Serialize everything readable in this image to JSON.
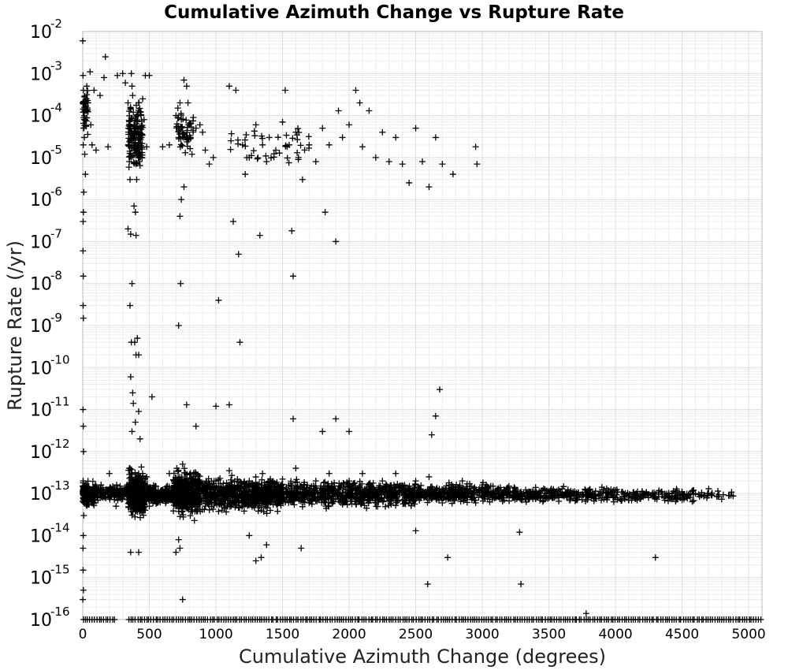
{
  "chart_data": {
    "type": "scatter",
    "title": "Cumulative Azimuth Change vs Rupture Rate",
    "xlabel": "Cumulative Azimuth Change (degrees)",
    "ylabel": "Rupture Rate (/yr)",
    "x_scale": "linear",
    "y_scale": "log",
    "xlim": [
      0,
      5100
    ],
    "ylim": [
      1e-16,
      0.01
    ],
    "x_ticks": [
      0,
      500,
      1000,
      1500,
      2000,
      2500,
      3000,
      3500,
      4000,
      4500,
      5000
    ],
    "y_ticks": [
      {
        "base": "10",
        "exp": "-2"
      },
      {
        "base": "10",
        "exp": "-3"
      },
      {
        "base": "10",
        "exp": "-4"
      },
      {
        "base": "10",
        "exp": "-5"
      },
      {
        "base": "10",
        "exp": "-6"
      },
      {
        "base": "10",
        "exp": "-7"
      },
      {
        "base": "10",
        "exp": "-8"
      },
      {
        "base": "10",
        "exp": "-9"
      },
      {
        "base": "10",
        "exp": "-10"
      },
      {
        "base": "10",
        "exp": "-11"
      },
      {
        "base": "10",
        "exp": "-12"
      },
      {
        "base": "10",
        "exp": "-13"
      },
      {
        "base": "10",
        "exp": "-14"
      },
      {
        "base": "10",
        "exp": "-15"
      },
      {
        "base": "10",
        "exp": "-16"
      }
    ],
    "grid": true,
    "marker": "+",
    "marker_color": "#000000",
    "points": [
      [
        0,
        0.006
      ],
      [
        2,
        0.0009
      ],
      [
        5,
        0.0004
      ],
      [
        8,
        0.0002
      ],
      [
        3,
        0.00012
      ],
      [
        10,
        8e-05
      ],
      [
        6,
        5e-05
      ],
      [
        12,
        3e-05
      ],
      [
        4,
        2e-05
      ],
      [
        15,
        1.2e-05
      ],
      [
        20,
        4e-06
      ],
      [
        8,
        1.5e-06
      ],
      [
        5,
        5e-07
      ],
      [
        3,
        3e-07
      ],
      [
        2,
        6e-08
      ],
      [
        4,
        1.5e-08
      ],
      [
        3,
        3e-09
      ],
      [
        5,
        1.5e-09
      ],
      [
        2,
        1e-11
      ],
      [
        4,
        4e-12
      ],
      [
        6,
        1e-12
      ],
      [
        3,
        2e-13
      ],
      [
        5,
        8e-14
      ],
      [
        8,
        3e-14
      ],
      [
        4,
        1e-14
      ],
      [
        2,
        5e-15
      ],
      [
        3,
        1.5e-15
      ],
      [
        5,
        5e-16
      ],
      [
        1,
        3e-16
      ],
      [
        30,
        0.0005
      ],
      [
        40,
        0.0002
      ],
      [
        55,
        0.0011
      ],
      [
        60,
        6e-05
      ],
      [
        70,
        2e-05
      ],
      [
        85,
        0.0004
      ],
      [
        100,
        1.5e-05
      ],
      [
        130,
        0.0003
      ],
      [
        170,
        0.0025
      ],
      [
        190,
        1.8e-05
      ],
      [
        160,
        0.0008
      ],
      [
        260,
        0.0009
      ],
      [
        300,
        0.001
      ],
      [
        320,
        0.0006
      ],
      [
        340,
        0.0002
      ],
      [
        345,
        5e-05
      ],
      [
        350,
        8e-06
      ],
      [
        355,
        3e-06
      ],
      [
        360,
        0.00015
      ],
      [
        365,
        0.001
      ],
      [
        370,
        0.0005
      ],
      [
        375,
        0.0003
      ],
      [
        380,
        0.00012
      ],
      [
        385,
        6e-05
      ],
      [
        390,
        3e-05
      ],
      [
        395,
        1.5e-05
      ],
      [
        400,
        7e-06
      ],
      [
        405,
        3e-06
      ],
      [
        410,
        0.0001
      ],
      [
        415,
        4e-05
      ],
      [
        420,
        0.0002
      ],
      [
        425,
        8e-06
      ],
      [
        430,
        5e-05
      ],
      [
        435,
        0.00012
      ],
      [
        440,
        3e-05
      ],
      [
        445,
        1e-05
      ],
      [
        450,
        0.00025
      ],
      [
        460,
        8e-05
      ],
      [
        470,
        0.0009
      ],
      [
        480,
        1.8e-05
      ],
      [
        500,
        0.0009
      ],
      [
        340,
        2e-07
      ],
      [
        360,
        1.5e-07
      ],
      [
        370,
        1e-08
      ],
      [
        355,
        3e-09
      ],
      [
        365,
        4e-10
      ],
      [
        410,
        5e-10
      ],
      [
        390,
        4e-10
      ],
      [
        400,
        2e-10
      ],
      [
        420,
        2e-10
      ],
      [
        360,
        6e-11
      ],
      [
        375,
        2.5e-11
      ],
      [
        380,
        1.4e-11
      ],
      [
        420,
        9e-12
      ],
      [
        395,
        5e-12
      ],
      [
        370,
        3e-12
      ],
      [
        430,
        2e-12
      ],
      [
        520,
        2e-11
      ],
      [
        360,
        4e-15
      ],
      [
        420,
        4e-15
      ],
      [
        400,
        1.4e-07
      ],
      [
        385,
        7e-07
      ],
      [
        395,
        5e-07
      ],
      [
        600,
        1.8e-05
      ],
      [
        650,
        2e-05
      ],
      [
        700,
        0.0001
      ],
      [
        720,
        3e-05
      ],
      [
        730,
        0.0002
      ],
      [
        740,
        8e-05
      ],
      [
        750,
        4e-05
      ],
      [
        760,
        0.0007
      ],
      [
        770,
        1.3e-05
      ],
      [
        780,
        0.0005
      ],
      [
        790,
        0.0002
      ],
      [
        800,
        6e-05
      ],
      [
        810,
        3e-05
      ],
      [
        820,
        1.2e-05
      ],
      [
        830,
        9e-05
      ],
      [
        850,
        5e-05
      ],
      [
        880,
        6e-05
      ],
      [
        900,
        4e-05
      ],
      [
        920,
        1.5e-05
      ],
      [
        950,
        7e-06
      ],
      [
        980,
        1e-05
      ],
      [
        730,
        4e-07
      ],
      [
        740,
        1e-06
      ],
      [
        760,
        2e-06
      ],
      [
        735,
        1e-08
      ],
      [
        720,
        1e-09
      ],
      [
        780,
        1.3e-11
      ],
      [
        850,
        4e-12
      ],
      [
        1020,
        4e-09
      ],
      [
        1000,
        1.2e-11
      ],
      [
        1100,
        1.3e-11
      ],
      [
        720,
        8e-15
      ],
      [
        730,
        5e-15
      ],
      [
        750,
        3e-16
      ],
      [
        700,
        4e-15
      ],
      [
        1100,
        0.0005
      ],
      [
        1150,
        0.0004
      ],
      [
        1130,
        3e-07
      ],
      [
        1170,
        5e-08
      ],
      [
        1200,
        2e-05
      ],
      [
        1220,
        4e-06
      ],
      [
        1250,
        1e-05
      ],
      [
        1300,
        6e-05
      ],
      [
        1330,
        1.4e-07
      ],
      [
        1350,
        2e-05
      ],
      [
        1380,
        8e-06
      ],
      [
        1400,
        3e-05
      ],
      [
        1450,
        1.5e-05
      ],
      [
        1500,
        7e-05
      ],
      [
        1520,
        0.0004
      ],
      [
        1550,
        2e-05
      ],
      [
        1570,
        1.8e-07
      ],
      [
        1580,
        1.5e-08
      ],
      [
        1600,
        4e-05
      ],
      [
        1620,
        1e-05
      ],
      [
        1650,
        3e-06
      ],
      [
        1700,
        2e-05
      ],
      [
        1750,
        8e-06
      ],
      [
        1800,
        5e-05
      ],
      [
        1820,
        5e-07
      ],
      [
        1850,
        2e-05
      ],
      [
        1900,
        1e-07
      ],
      [
        1920,
        0.00013
      ],
      [
        1950,
        3e-05
      ],
      [
        2000,
        6e-05
      ],
      [
        2050,
        0.0004
      ],
      [
        2080,
        0.0002
      ],
      [
        2100,
        1.8e-05
      ],
      [
        2150,
        0.00013
      ],
      [
        2200,
        1e-05
      ],
      [
        2250,
        4e-05
      ],
      [
        2300,
        8e-06
      ],
      [
        2350,
        3e-05
      ],
      [
        2400,
        7e-06
      ],
      [
        2450,
        2.5e-06
      ],
      [
        2500,
        5e-05
      ],
      [
        2550,
        8e-06
      ],
      [
        2600,
        2e-06
      ],
      [
        2650,
        3e-05
      ],
      [
        2700,
        7e-06
      ],
      [
        2780,
        4e-06
      ],
      [
        2950,
        1.8e-05
      ],
      [
        2960,
        7e-06
      ],
      [
        1180,
        4e-10
      ],
      [
        1250,
        1e-14
      ],
      [
        1580,
        6e-12
      ],
      [
        1800,
        3e-12
      ],
      [
        1900,
        6e-12
      ],
      [
        2000,
        3e-12
      ],
      [
        2500,
        1.3e-14
      ],
      [
        2590,
        7e-16
      ],
      [
        2680,
        3e-11
      ],
      [
        2650,
        7e-12
      ],
      [
        2620,
        2.5e-12
      ],
      [
        2740,
        3e-15
      ],
      [
        3290,
        7e-16
      ],
      [
        3280,
        1.2e-14
      ],
      [
        4300,
        3e-15
      ],
      [
        3780,
        1.4e-16
      ],
      [
        1300,
        2.5e-15
      ],
      [
        1640,
        5e-15
      ],
      [
        1380,
        6e-15
      ],
      [
        1340,
        3e-15
      ],
      [
        100,
        1.5e-13
      ],
      [
        150,
        8e-14
      ],
      [
        200,
        3e-13
      ],
      [
        250,
        5e-14
      ],
      [
        300,
        1e-13
      ],
      [
        350,
        4e-13
      ],
      [
        380,
        2e-13
      ],
      [
        400,
        6e-14
      ],
      [
        420,
        3e-13
      ],
      [
        440,
        1.2e-13
      ],
      [
        460,
        7e-14
      ],
      [
        480,
        2.5e-13
      ],
      [
        500,
        5e-14
      ],
      [
        550,
        1.5e-13
      ],
      [
        600,
        8e-14
      ],
      [
        650,
        3e-13
      ],
      [
        700,
        1e-13
      ],
      [
        750,
        5e-13
      ],
      [
        780,
        2e-13
      ],
      [
        800,
        7e-14
      ],
      [
        850,
        3e-13
      ],
      [
        900,
        1.2e-13
      ],
      [
        950,
        6e-14
      ],
      [
        1000,
        2e-13
      ],
      [
        1050,
        9e-14
      ],
      [
        1100,
        3.5e-13
      ],
      [
        1150,
        1.2e-13
      ],
      [
        1200,
        6e-14
      ],
      [
        1250,
        2e-13
      ],
      [
        1300,
        9e-14
      ],
      [
        1350,
        3e-13
      ],
      [
        1400,
        1.3e-13
      ],
      [
        1450,
        6e-14
      ],
      [
        1500,
        2.2e-13
      ],
      [
        1550,
        1e-13
      ],
      [
        1600,
        4e-13
      ],
      [
        1650,
        1.4e-13
      ],
      [
        1700,
        6e-14
      ],
      [
        1750,
        2e-13
      ],
      [
        1800,
        1e-13
      ],
      [
        1850,
        3e-13
      ],
      [
        1900,
        1.2e-13
      ],
      [
        1950,
        7e-14
      ],
      [
        2000,
        2e-13
      ],
      [
        2050,
        1e-13
      ],
      [
        2100,
        3e-13
      ],
      [
        2150,
        1.1e-13
      ],
      [
        2200,
        6e-14
      ],
      [
        2250,
        2e-13
      ],
      [
        2300,
        1e-13
      ],
      [
        2350,
        3e-13
      ],
      [
        2400,
        1.1e-13
      ],
      [
        2450,
        6e-14
      ],
      [
        2500,
        2e-13
      ],
      [
        2550,
        9e-14
      ],
      [
        2600,
        2.5e-13
      ],
      [
        2650,
        1e-13
      ],
      [
        2700,
        6e-14
      ],
      [
        2750,
        1.8e-13
      ],
      [
        2800,
        9e-14
      ],
      [
        2850,
        2e-13
      ],
      [
        2900,
        1e-13
      ],
      [
        2950,
        6e-14
      ],
      [
        3000,
        1.6e-13
      ],
      [
        3100,
        8e-14
      ],
      [
        3200,
        1.5e-13
      ],
      [
        3300,
        7e-14
      ],
      [
        3400,
        1.4e-13
      ],
      [
        3500,
        8e-14
      ],
      [
        3600,
        1.3e-13
      ],
      [
        3700,
        7e-14
      ],
      [
        3800,
        1.2e-13
      ],
      [
        3900,
        8e-14
      ],
      [
        4000,
        1.2e-13
      ],
      [
        4100,
        7e-14
      ],
      [
        4200,
        1.1e-13
      ],
      [
        4300,
        8e-14
      ],
      [
        4400,
        1e-13
      ],
      [
        4500,
        7e-14
      ],
      [
        4600,
        1e-13
      ],
      [
        4700,
        1.3e-13
      ],
      [
        4850,
        9e-14
      ]
    ],
    "dense_bands": [
      {
        "x": [
          0,
          30
        ],
        "y": [
          5e-14,
          2e-13
        ],
        "n": 70
      },
      {
        "x": [
          0,
          90
        ],
        "y": [
          4e-14,
          2.5e-13
        ],
        "n": 120
      },
      {
        "x": [
          90,
          340
        ],
        "y": [
          6e-14,
          1.8e-13
        ],
        "n": 130
      },
      {
        "x": [
          340,
          470
        ],
        "y": [
          2e-14,
          5e-13
        ],
        "n": 350
      },
      {
        "x": [
          470,
          680
        ],
        "y": [
          5e-14,
          1.8e-13
        ],
        "n": 180
      },
      {
        "x": [
          680,
          880
        ],
        "y": [
          2e-14,
          5e-13
        ],
        "n": 450
      },
      {
        "x": [
          880,
          1500
        ],
        "y": [
          3e-14,
          3e-13
        ],
        "n": 650
      },
      {
        "x": [
          1500,
          2500
        ],
        "y": [
          4e-14,
          2.4e-13
        ],
        "n": 650
      },
      {
        "x": [
          2500,
          3200
        ],
        "y": [
          5e-14,
          2e-13
        ],
        "n": 350
      },
      {
        "x": [
          3200,
          4000
        ],
        "y": [
          5.5e-14,
          1.6e-13
        ],
        "n": 260
      },
      {
        "x": [
          4000,
          4600
        ],
        "y": [
          6e-14,
          1.4e-13
        ],
        "n": 130
      },
      {
        "x": [
          4600,
          4900
        ],
        "y": [
          6.5e-14,
          1.3e-13
        ],
        "n": 25
      },
      {
        "x": [
          0,
          40
        ],
        "y": [
          2e-05,
          0.001
        ],
        "n": 40
      },
      {
        "x": [
          340,
          450
        ],
        "y": [
          3e-06,
          0.0003
        ],
        "n": 140
      },
      {
        "x": [
          700,
          830
        ],
        "y": [
          1e-05,
          0.0002
        ],
        "n": 50
      },
      {
        "x": [
          1100,
          1700
        ],
        "y": [
          5e-06,
          0.0001
        ],
        "n": 40
      }
    ],
    "floor_band": {
      "x": [
        0,
        5100
      ],
      "y": 1e-16,
      "n": 300,
      "skip": [
        [
          240,
          330
        ]
      ]
    }
  }
}
